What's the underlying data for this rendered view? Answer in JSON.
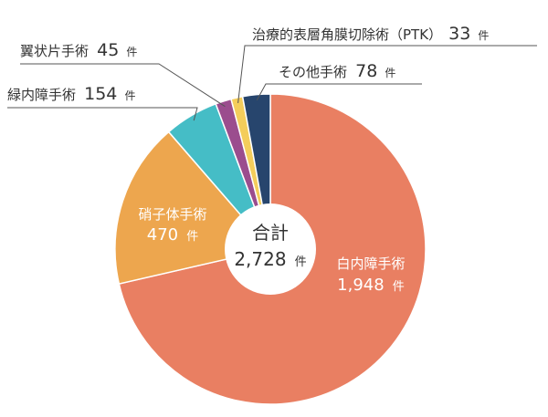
{
  "chart_data": {
    "type": "pie",
    "title": "",
    "total": {
      "label": "合計",
      "value": "2,728",
      "unit": "件"
    },
    "slices": [
      {
        "name": "白内障手術",
        "value": 1948,
        "display_value": "1,948",
        "unit": "件",
        "color": "#E97F62",
        "label_position": "inside"
      },
      {
        "name": "硝子体手術",
        "value": 470,
        "display_value": "470",
        "unit": "件",
        "color": "#EDA64E",
        "label_position": "inside"
      },
      {
        "name": "緑内障手術",
        "value": 154,
        "display_value": "154",
        "unit": "件",
        "color": "#45BDC6",
        "label_position": "outside"
      },
      {
        "name": "翼状片手術",
        "value": 45,
        "display_value": "45",
        "unit": "件",
        "color": "#9B4D8E",
        "label_position": "outside"
      },
      {
        "name": "治療的表層角膜切除術（PTK）",
        "value": 33,
        "display_value": "33",
        "unit": "件",
        "color": "#F4CD5B",
        "label_position": "outside"
      },
      {
        "name": "その他手術",
        "value": 78,
        "display_value": "78",
        "unit": "件",
        "color": "#27456D",
        "label_position": "outside"
      }
    ]
  }
}
